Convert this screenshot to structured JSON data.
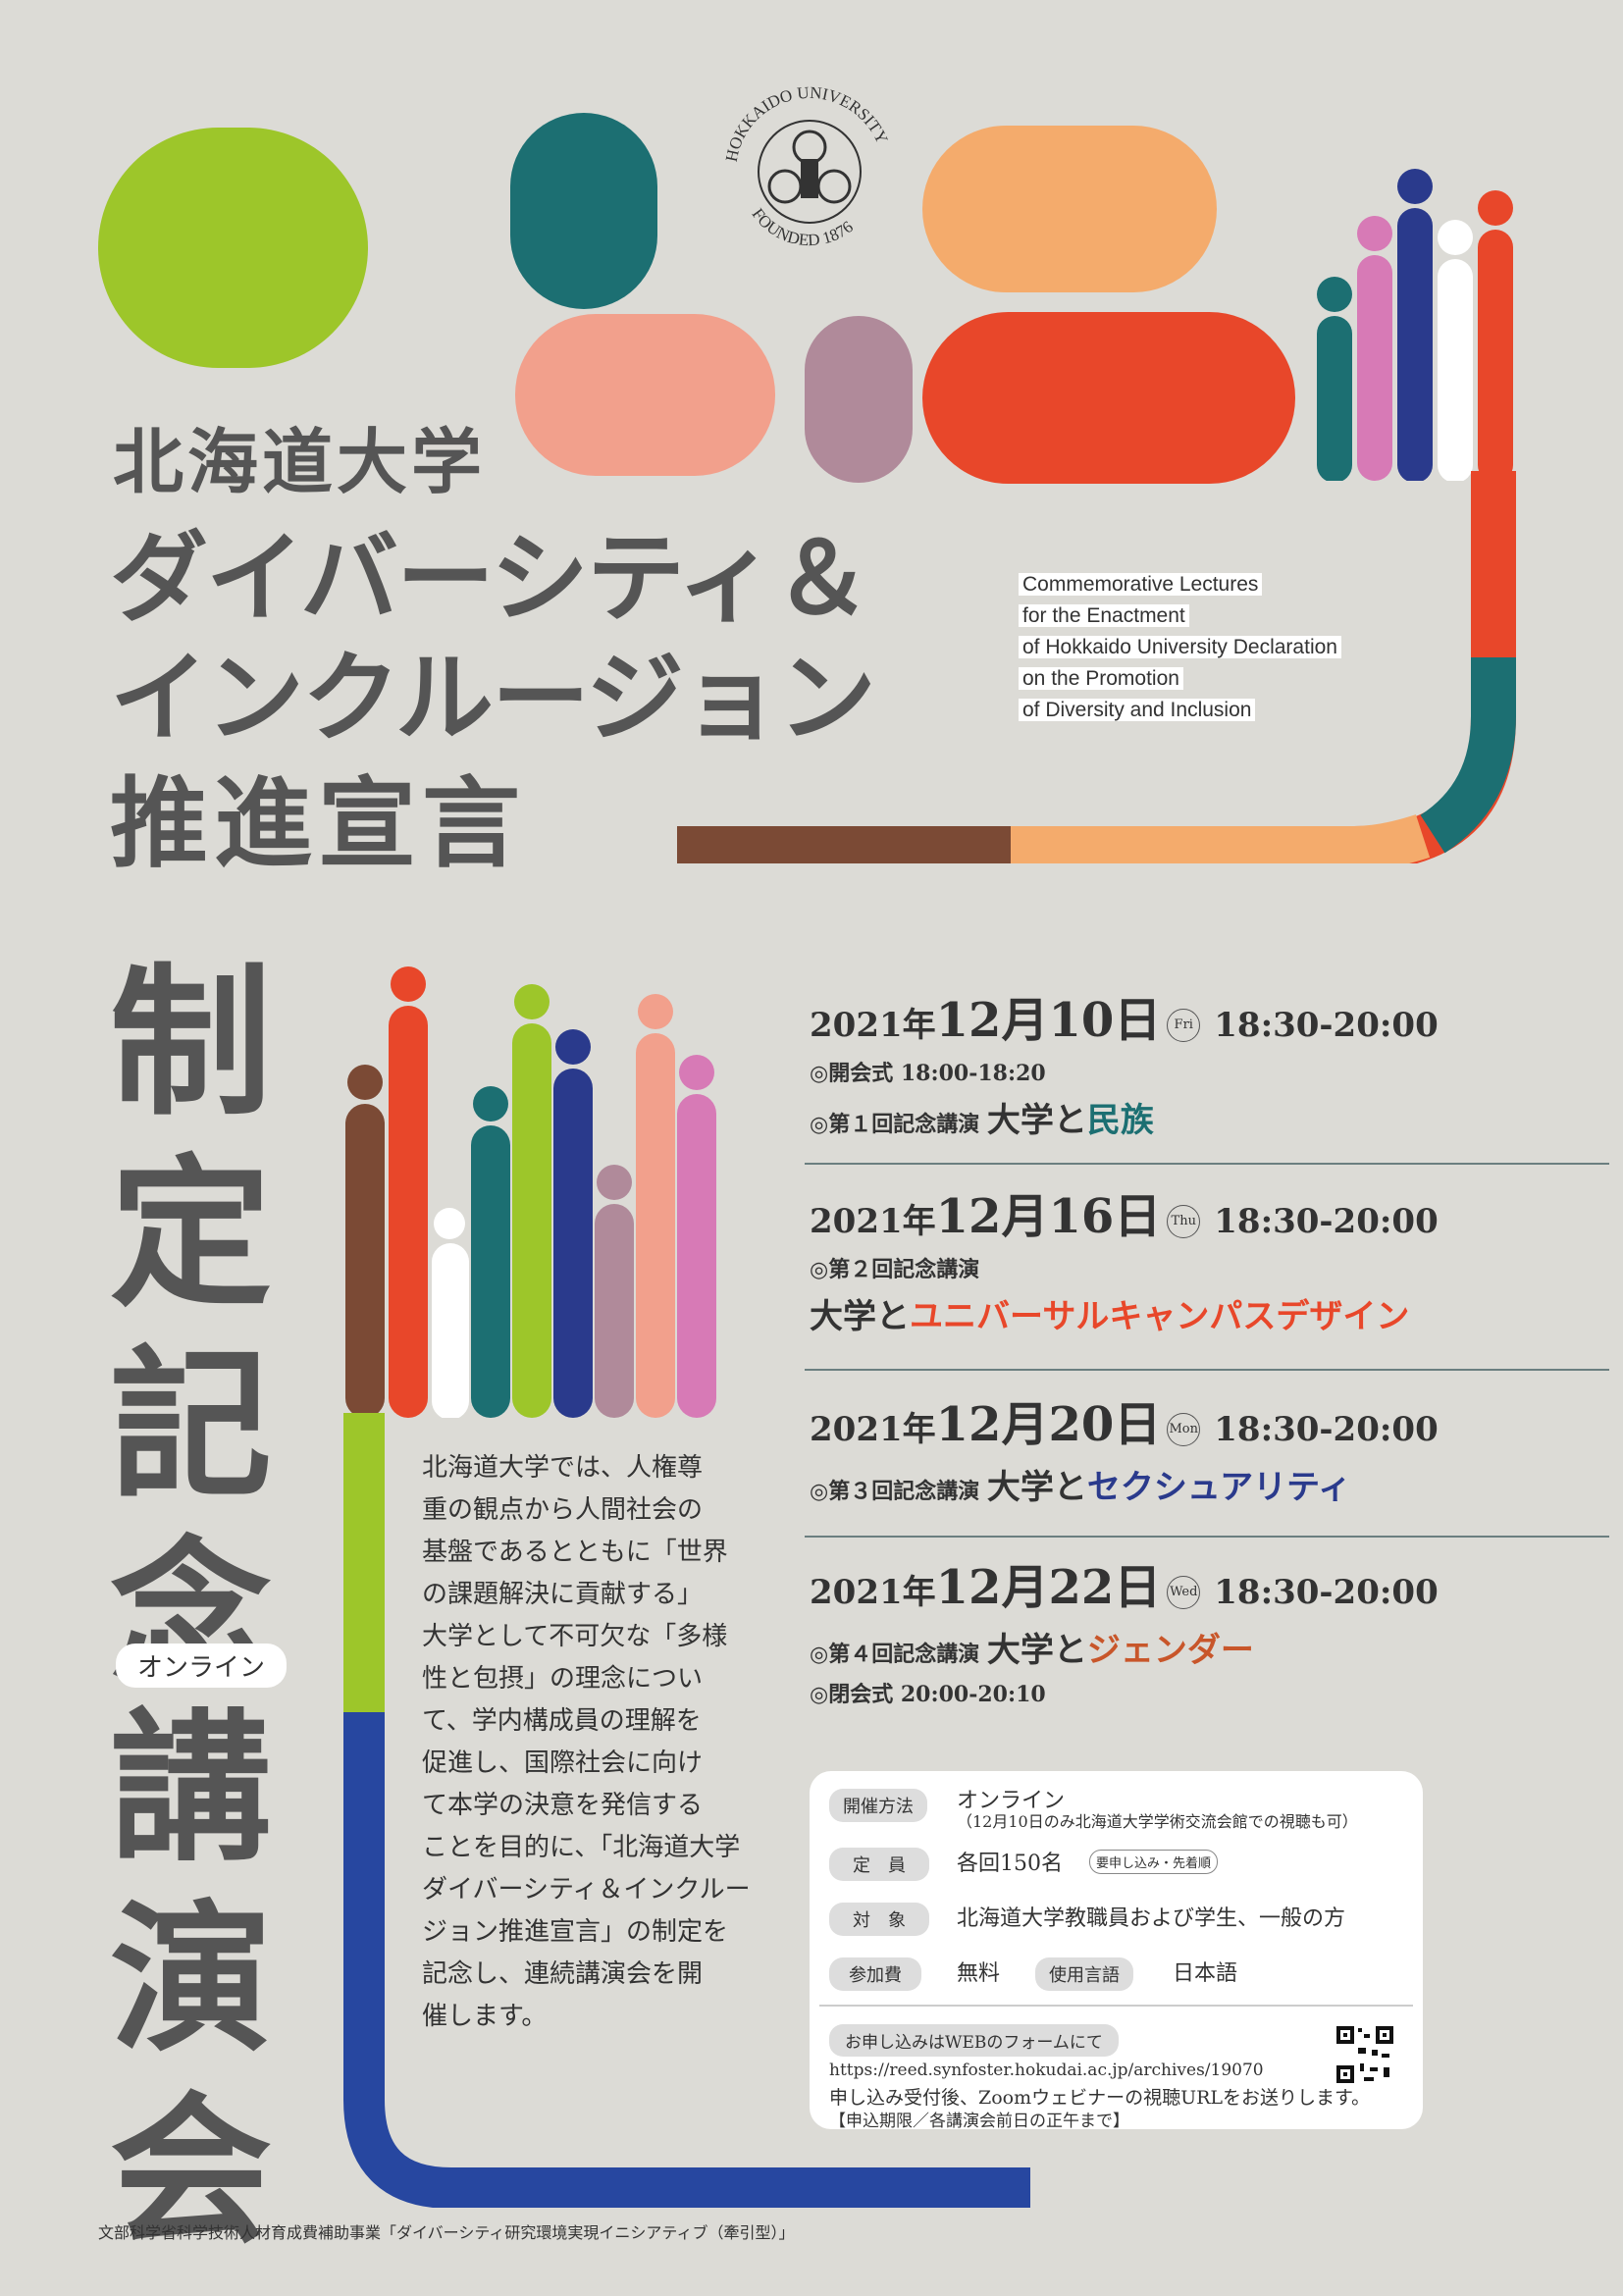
{
  "logo": {
    "university_ring": "HOKKAIDO UNIVERSITY",
    "founded_ring": "FOUNDED 1876"
  },
  "title": {
    "line1": "北海道大学",
    "line2": "ダイバーシティ＆",
    "line3": "インクルージョン",
    "line4": "推進宣言",
    "vertical_1": "制定記念",
    "online_badge": "オンライン",
    "vertical_2": "講演会"
  },
  "english_title": [
    "Commemorative Lectures",
    "for the Enactment",
    "of Hokkaido University Declaration",
    "on the Promotion",
    "of Diversity and Inclusion"
  ],
  "intro_text": [
    "北海道大学では、人権尊",
    "重の観点から人間社会の",
    "基盤であるとともに「世界",
    "の課題解決に貢献する」",
    "大学として不可欠な「多様",
    "性と包摂」の理念につい",
    "て、学内構成員の理解を",
    "促進し、国際社会に向け",
    "て本学の決意を発信する",
    "ことを目的に、「北海道大学",
    "ダイバーシティ＆インクルー",
    "ジョン推進宣言」の制定を",
    "記念し、連続講演会を開",
    "催します。"
  ],
  "events": [
    {
      "year": "2021年",
      "md": "12月10日",
      "day": "Fri",
      "time": "18:30-20:00",
      "lines": [
        {
          "prefix": "◎開会式 18:00-18:20",
          "main": "",
          "accent": ""
        },
        {
          "prefix": "◎第１回記念講演",
          "main": "大学と",
          "accent": "民族"
        }
      ]
    },
    {
      "year": "2021年",
      "md": "12月16日",
      "day": "Thu",
      "time": "18:30-20:00",
      "lines": [
        {
          "prefix": "◎第２回記念講演",
          "main": "",
          "accent": ""
        },
        {
          "prefix": "",
          "main": "大学と",
          "accent": "ユニバーサルキャンパスデザイン"
        }
      ]
    },
    {
      "year": "2021年",
      "md": "12月20日",
      "day": "Mon",
      "time": "18:30-20:00",
      "lines": [
        {
          "prefix": "◎第３回記念講演",
          "main": "大学と",
          "accent": "セクシュアリティ"
        }
      ]
    },
    {
      "year": "2021年",
      "md": "12月22日",
      "day": "Wed",
      "time": "18:30-20:00",
      "lines": [
        {
          "prefix": "◎第４回記念講演",
          "main": "大学と",
          "accent": "ジェンダー"
        },
        {
          "prefix": "◎閉会式 20:00-20:10",
          "main": "",
          "accent": ""
        }
      ]
    }
  ],
  "info": {
    "method_label": "開催方法",
    "method": "オンライン",
    "method_note": "（12月10日のみ北海道大学学術交流会館での視聴も可）",
    "capacity_label": "定　員",
    "capacity": "各回150名",
    "capacity_note": "要申し込み・先着順",
    "target_label": "対　象",
    "target": "北海道大学教職員および学生、一般の方",
    "fee_label": "参加費",
    "fee": "無料",
    "lang_label": "使用言語",
    "lang": "日本語",
    "apply_label": "お申し込みはWEBのフォームにて",
    "url": "https://reed.synfoster.hokudai.ac.jp/archives/19070",
    "after": "申し込み受付後、Zoomウェビナーの視聴URLをお送りします。",
    "deadline": "【申込期限／各講演会前日の正午まで】"
  },
  "footer": "文部科学省科学技術人材育成費補助事業「ダイバーシティ研究環境実現イニシアティブ（牽引型）」",
  "colors": {
    "green": "#9dc62a",
    "teal": "#1c6f72",
    "salmon": "#f2a08c",
    "mauve": "#b08a9a",
    "orange": "#f4ab6c",
    "red": "#e8472a",
    "navy": "#2a3a8c",
    "pink": "#d77ab6",
    "brown": "#7b4a35",
    "blue": "#2747a0"
  }
}
